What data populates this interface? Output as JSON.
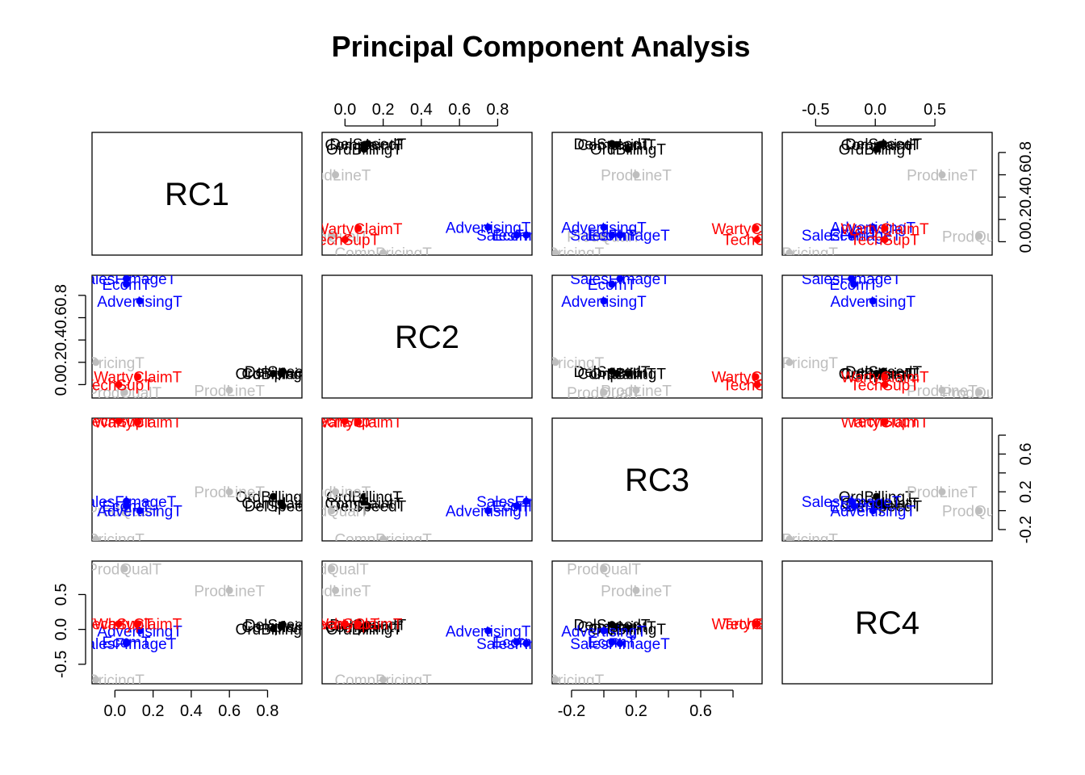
{
  "chart_data": {
    "type": "scatter",
    "subtype": "pairs-matrix",
    "title": "Principal Component Analysis",
    "components": [
      "RC1",
      "RC2",
      "RC3",
      "RC4"
    ],
    "axis_ranges": {
      "RC1": [
        -0.12,
        0.98
      ],
      "RC2": [
        -0.12,
        0.98
      ],
      "RC3": [
        -0.32,
        0.98
      ],
      "RC4": [
        -0.78,
        0.98
      ]
    },
    "ticks": {
      "RC1": [
        "0.0",
        "0.2",
        "0.4",
        "0.6",
        "0.8"
      ],
      "RC2": [
        "0.0",
        "0.2",
        "0.4",
        "0.6",
        "0.8"
      ],
      "RC3": [
        "-0.2",
        "0.2",
        "0.6"
      ],
      "RC4": [
        "-0.5",
        "0.0",
        "0.5"
      ]
    },
    "tick_values": {
      "RC1": [
        0.0,
        0.2,
        0.4,
        0.6,
        0.8
      ],
      "RC2": [
        0.0,
        0.2,
        0.4,
        0.6,
        0.8
      ],
      "RC3": [
        -0.2,
        0.2,
        0.6
      ],
      "RC4": [
        -0.5,
        0.0,
        0.5
      ]
    },
    "minor_tick_values": {
      "RC1": [],
      "RC2": [],
      "RC3": [
        -0.2,
        0.0,
        0.2,
        0.4,
        0.6,
        0.8
      ],
      "RC4": [
        -0.5,
        0.0,
        0.5
      ]
    },
    "groups": [
      {
        "name": "group-black",
        "color": "#000000"
      },
      {
        "name": "group-blue",
        "color": "#0000FF"
      },
      {
        "name": "group-red",
        "color": "#FF0000"
      },
      {
        "name": "group-gray",
        "color": "#BEBEBE"
      }
    ],
    "variables": [
      {
        "label": "DelSpeedT",
        "group": 0,
        "loadings": [
          0.88,
          0.12,
          0.05,
          0.07
        ]
      },
      {
        "label": "ComplaintT",
        "group": 0,
        "loadings": [
          0.87,
          0.1,
          0.08,
          0.04
        ]
      },
      {
        "label": "OrdBillingT",
        "group": 0,
        "loadings": [
          0.83,
          0.1,
          0.15,
          0.01
        ]
      },
      {
        "label": "ProdLineT",
        "group": 3,
        "loadings": [
          0.6,
          -0.05,
          0.2,
          0.56
        ]
      },
      {
        "label": "CompPricingT",
        "group": 3,
        "loadings": [
          -0.1,
          0.2,
          -0.3,
          -0.72
        ]
      },
      {
        "label": "ProdQualT",
        "group": 3,
        "loadings": [
          0.05,
          -0.07,
          0.0,
          0.87
        ]
      },
      {
        "label": "SalesFImageT",
        "group": 1,
        "loadings": [
          0.06,
          0.95,
          0.1,
          -0.2
        ]
      },
      {
        "label": "EcomT",
        "group": 1,
        "loadings": [
          0.06,
          0.9,
          0.05,
          -0.18
        ]
      },
      {
        "label": "AdvertisingT",
        "group": 1,
        "loadings": [
          0.13,
          0.75,
          0.0,
          -0.02
        ]
      },
      {
        "label": "WartyClaimT",
        "group": 2,
        "loadings": [
          0.12,
          0.07,
          0.94,
          0.08
        ]
      },
      {
        "label": "TechSupT",
        "group": 2,
        "loadings": [
          0.02,
          0.0,
          0.95,
          0.08
        ]
      }
    ]
  }
}
